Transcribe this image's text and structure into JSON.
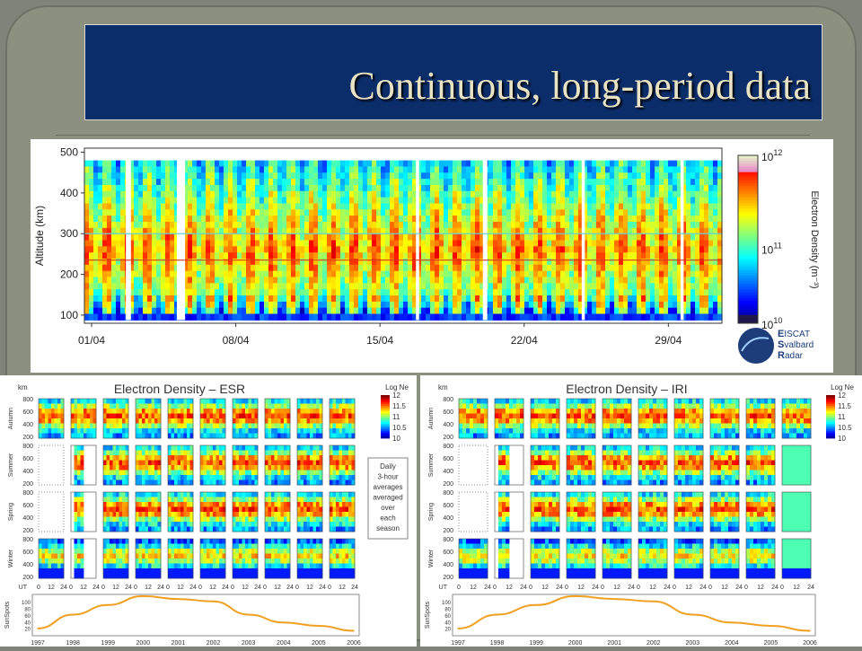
{
  "slide": {
    "title": "Continuous, long-period data"
  },
  "chart_data": [
    {
      "type": "heatmap",
      "ylabel": "Altitude (km)",
      "colorbar_label": "Electron Density (m⁻³)",
      "y_ticks": [
        "100",
        "200",
        "300",
        "400",
        "500"
      ],
      "x_ticks": [
        "01/04",
        "08/04",
        "15/04",
        "22/04",
        "29/04"
      ],
      "colorbar_ticks": [
        {
          "base": "10",
          "exp": "12"
        },
        {
          "base": "10",
          "exp": "11"
        },
        {
          "base": "10",
          "exp": "10"
        }
      ],
      "ylim": [
        80,
        510
      ],
      "logo": {
        "line1_big": "E",
        "line1": "ISCAT",
        "line2_big": "S",
        "line2": "valbard",
        "line3_big": "R",
        "line3": "adar"
      }
    },
    {
      "type": "heatmap",
      "title": "Electron Density – ESR",
      "unit_label": "km",
      "scale_title": "Log Ne",
      "scale_ticks": [
        "12",
        "11.5",
        "11",
        "10.5",
        "10"
      ],
      "rows": [
        "Autumn",
        "Summer",
        "Spring",
        "Winter"
      ],
      "y_ticks": [
        "800",
        "600",
        "400",
        "200"
      ],
      "ut_label": "UT",
      "ut_ticks": [
        "0",
        "12",
        "24"
      ],
      "note": [
        "Daily",
        "3-hour",
        "averages",
        "averaged",
        "over",
        "each",
        "season"
      ],
      "sunspots_label": "SunSpots",
      "sunspot_ticks": [
        "100",
        "80",
        "60",
        "40",
        "20"
      ],
      "years": [
        "1997",
        "1998",
        "1999",
        "2000",
        "2001",
        "2002",
        "2003",
        "2004",
        "2005",
        "2006"
      ],
      "sunspot_number": [
        22,
        64,
        93,
        120,
        111,
        104,
        64,
        40,
        30,
        15
      ]
    },
    {
      "type": "heatmap",
      "title": "Electron Density – IRI",
      "unit_label": "km",
      "scale_title": "Log Ne",
      "scale_ticks": [
        "12",
        "11.5",
        "11",
        "10.5",
        "10"
      ],
      "rows": [
        "Autumn",
        "Summer",
        "Spring",
        "Winter"
      ],
      "y_ticks": [
        "800",
        "600",
        "400",
        "200"
      ],
      "ut_label": "UT",
      "ut_ticks": [
        "0",
        "12",
        "24"
      ],
      "sunspots_label": "SunSpots",
      "sunspot_ticks": [
        "100",
        "80",
        "60",
        "40",
        "20"
      ],
      "years": [
        "1997",
        "1998",
        "1999",
        "2000",
        "2001",
        "2002",
        "2003",
        "2004",
        "2005",
        "2006"
      ],
      "sunspot_number": [
        22,
        64,
        93,
        120,
        111,
        104,
        64,
        40,
        30,
        15
      ]
    }
  ]
}
